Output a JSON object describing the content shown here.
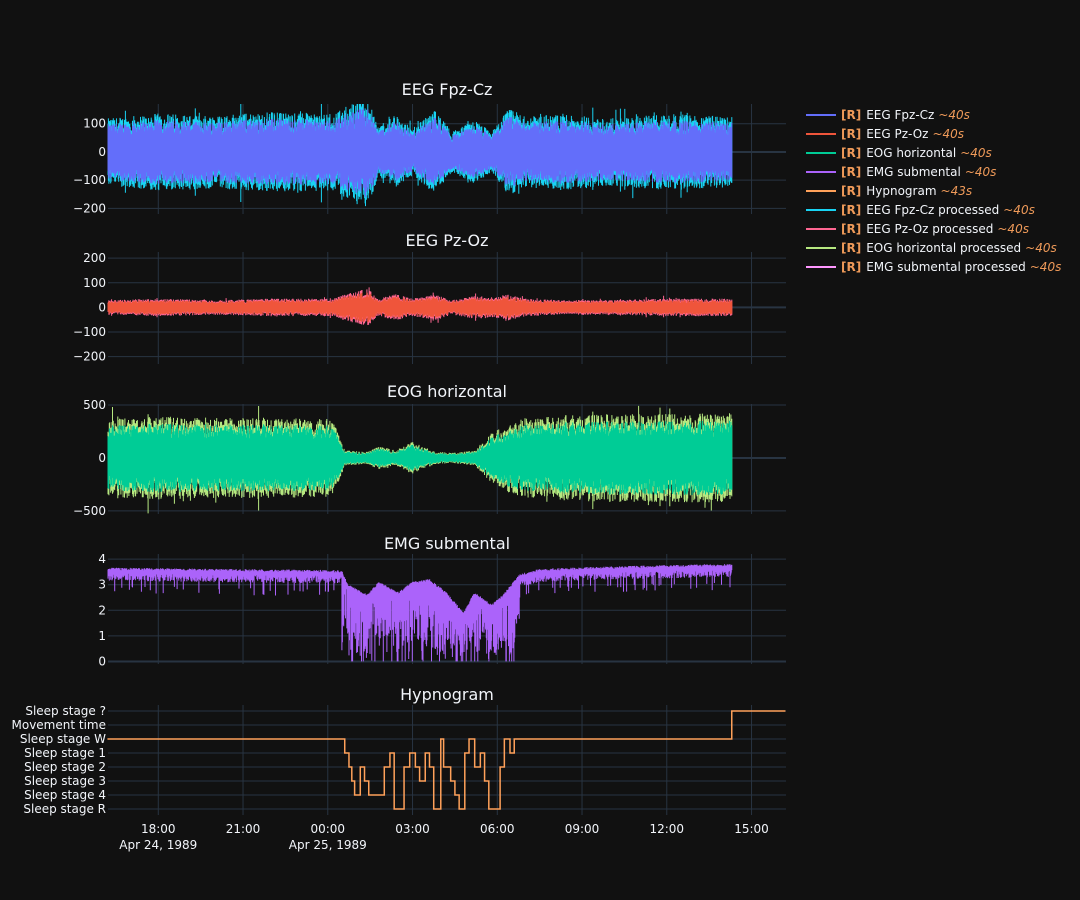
{
  "chart_data": [
    {
      "type": "line",
      "title": "EEG Fpz-Cz",
      "x_range": [
        "1989-04-24 16:13",
        "1989-04-25 16:13"
      ],
      "ylim": [
        -220,
        170
      ],
      "yticks": [
        -200,
        -100,
        0,
        100
      ],
      "series": [
        {
          "name": "EEG Fpz-Cz",
          "color": "#636efa"
        },
        {
          "name": "EEG Fpz-Cz processed",
          "color": "#19d3f3"
        }
      ],
      "envelope_note_hours": [
        -7.8,
        -6,
        -4,
        -2,
        0.2,
        0.6,
        1.4,
        1.8,
        2.4,
        3,
        3.8,
        4.4,
        5.2,
        5.8,
        6.4,
        7,
        8.4,
        10,
        12,
        14.2
      ],
      "envelope_amplitude": [
        100,
        115,
        110,
        120,
        115,
        135,
        165,
        75,
        110,
        70,
        125,
        60,
        95,
        60,
        130,
        105,
        115,
        100,
        115,
        105
      ]
    },
    {
      "type": "line",
      "title": "EEG Pz-Oz",
      "x_range": [
        "1989-04-24 16:13",
        "1989-04-25 16:13"
      ],
      "ylim": [
        -230,
        225
      ],
      "yticks": [
        -200,
        -100,
        0,
        100,
        200
      ],
      "series": [
        {
          "name": "EEG Pz-Oz",
          "color": "#ef553b"
        },
        {
          "name": "EEG Pz-Oz processed",
          "color": "#ff6692"
        }
      ],
      "envelope_note_hours": [
        -7.8,
        -6,
        -4,
        -2,
        0.2,
        0.6,
        1.4,
        1.8,
        2.4,
        3,
        3.8,
        4.4,
        5.2,
        5.8,
        6.4,
        7,
        8.4,
        10,
        12,
        14.2
      ],
      "envelope_amplitude": [
        25,
        30,
        25,
        30,
        30,
        45,
        65,
        30,
        45,
        30,
        45,
        25,
        40,
        35,
        45,
        30,
        25,
        25,
        30,
        30
      ]
    },
    {
      "type": "line",
      "title": "EOG horizontal",
      "x_range": [
        "1989-04-24 16:13",
        "1989-04-25 16:13"
      ],
      "ylim": [
        -530,
        510
      ],
      "yticks": [
        -500,
        0,
        500
      ],
      "series": [
        {
          "name": "EOG horizontal",
          "color": "#00cc96"
        },
        {
          "name": "EOG horizontal processed",
          "color": "#b6e880"
        }
      ],
      "envelope_note_hours": [
        -7.8,
        -6,
        -4,
        -2,
        0.2,
        0.6,
        1.4,
        1.8,
        2.4,
        3,
        3.8,
        4.4,
        5.2,
        5.8,
        6.4,
        7,
        8.4,
        10,
        12,
        14.2
      ],
      "envelope_amplitude": [
        310,
        330,
        320,
        320,
        310,
        60,
        50,
        90,
        60,
        130,
        50,
        40,
        60,
        200,
        280,
        320,
        340,
        350,
        350,
        360
      ]
    },
    {
      "type": "line",
      "title": "EMG submental",
      "x_range": [
        "1989-04-24 16:13",
        "1989-04-25 16:13"
      ],
      "ylim": [
        -0.1,
        4.2
      ],
      "yticks": [
        0,
        1,
        2,
        3,
        4
      ],
      "series": [
        {
          "name": "EMG submental",
          "color": "#ab63fa"
        },
        {
          "name": "EMG submental processed",
          "color": "#ff97ff"
        }
      ],
      "baseline_note_hours": [
        -7.8,
        -4,
        0.5,
        0.7,
        1.4,
        1.8,
        2.5,
        3,
        3.6,
        4.2,
        4.8,
        5.2,
        5.8,
        6.2,
        6.8,
        7.5,
        10,
        14.2
      ],
      "baseline_values": [
        3.45,
        3.4,
        3.35,
        2.8,
        2.4,
        2.9,
        2.5,
        2.9,
        3.0,
        2.5,
        1.7,
        2.5,
        2.0,
        2.4,
        3.2,
        3.4,
        3.5,
        3.6
      ]
    },
    {
      "type": "line",
      "title": "Hypnogram",
      "x_range": [
        "1989-04-24 16:13",
        "1989-04-25 16:13"
      ],
      "categories": [
        "Sleep stage ?",
        "Movement time",
        "Sleep stage W",
        "Sleep stage 1",
        "Sleep stage 2",
        "Sleep stage 3",
        "Sleep stage 4",
        "Sleep stage R"
      ],
      "series": [
        {
          "name": "Hypnogram",
          "color": "#fecb52",
          "line_color": "#ffa15a",
          "steps_hours": [
            [
              -7.8,
              "Sleep stage W"
            ],
            [
              0.6,
              "Sleep stage 1"
            ],
            [
              0.75,
              "Sleep stage 2"
            ],
            [
              0.85,
              "Sleep stage 3"
            ],
            [
              0.95,
              "Sleep stage 4"
            ],
            [
              1.15,
              "Sleep stage 2"
            ],
            [
              1.3,
              "Sleep stage 3"
            ],
            [
              1.45,
              "Sleep stage 4"
            ],
            [
              2.0,
              "Sleep stage 2"
            ],
            [
              2.2,
              "Sleep stage 1"
            ],
            [
              2.35,
              "Sleep stage R"
            ],
            [
              2.7,
              "Sleep stage 2"
            ],
            [
              2.9,
              "Sleep stage 1"
            ],
            [
              3.1,
              "Sleep stage 2"
            ],
            [
              3.25,
              "Sleep stage 3"
            ],
            [
              3.45,
              "Sleep stage 1"
            ],
            [
              3.6,
              "Sleep stage 2"
            ],
            [
              3.75,
              "Sleep stage R"
            ],
            [
              4.0,
              "Sleep stage W"
            ],
            [
              4.1,
              "Sleep stage 2"
            ],
            [
              4.35,
              "Sleep stage 3"
            ],
            [
              4.5,
              "Sleep stage 4"
            ],
            [
              4.65,
              "Sleep stage R"
            ],
            [
              4.85,
              "Sleep stage 1"
            ],
            [
              5.0,
              "Sleep stage W"
            ],
            [
              5.2,
              "Sleep stage 2"
            ],
            [
              5.4,
              "Sleep stage 1"
            ],
            [
              5.55,
              "Sleep stage 3"
            ],
            [
              5.7,
              "Sleep stage R"
            ],
            [
              6.1,
              "Sleep stage 2"
            ],
            [
              6.25,
              "Sleep stage W"
            ],
            [
              6.45,
              "Sleep stage 1"
            ],
            [
              6.6,
              "Sleep stage W"
            ],
            [
              14.3,
              "Sleep stage ?"
            ],
            [
              16.2,
              "Sleep stage ?"
            ]
          ]
        }
      ]
    }
  ],
  "shared_x_axis": {
    "ticks": [
      {
        "label": "18:00",
        "sublabel": "Apr 24, 1989",
        "hours_from_midnight": -6
      },
      {
        "label": "21:00",
        "sublabel": "",
        "hours_from_midnight": -3
      },
      {
        "label": "00:00",
        "sublabel": "Apr 25, 1989",
        "hours_from_midnight": 0
      },
      {
        "label": "03:00",
        "sublabel": "",
        "hours_from_midnight": 3
      },
      {
        "label": "06:00",
        "sublabel": "",
        "hours_from_midnight": 6
      },
      {
        "label": "09:00",
        "sublabel": "",
        "hours_from_midnight": 9
      },
      {
        "label": "12:00",
        "sublabel": "",
        "hours_from_midnight": 12
      },
      {
        "label": "15:00",
        "sublabel": "",
        "hours_from_midnight": 15
      }
    ]
  },
  "legend": {
    "tag": "[R]",
    "items": [
      {
        "name": "EEG Fpz-Cz",
        "suffix": "~40s",
        "color": "#636efa"
      },
      {
        "name": "EEG Pz-Oz",
        "suffix": "~40s",
        "color": "#ef553b"
      },
      {
        "name": "EOG horizontal",
        "suffix": "~40s",
        "color": "#00cc96"
      },
      {
        "name": "EMG submental",
        "suffix": "~40s",
        "color": "#ab63fa"
      },
      {
        "name": "Hypnogram",
        "suffix": "~43s",
        "color": "#ffa15a"
      },
      {
        "name": "EEG Fpz-Cz processed",
        "suffix": "~40s",
        "color": "#19d3f3"
      },
      {
        "name": "EEG Pz-Oz processed",
        "suffix": "~40s",
        "color": "#ff6692"
      },
      {
        "name": "EOG horizontal processed",
        "suffix": "~40s",
        "color": "#b6e880"
      },
      {
        "name": "EMG submental processed",
        "suffix": "~40s",
        "color": "#ff97ff"
      }
    ]
  }
}
